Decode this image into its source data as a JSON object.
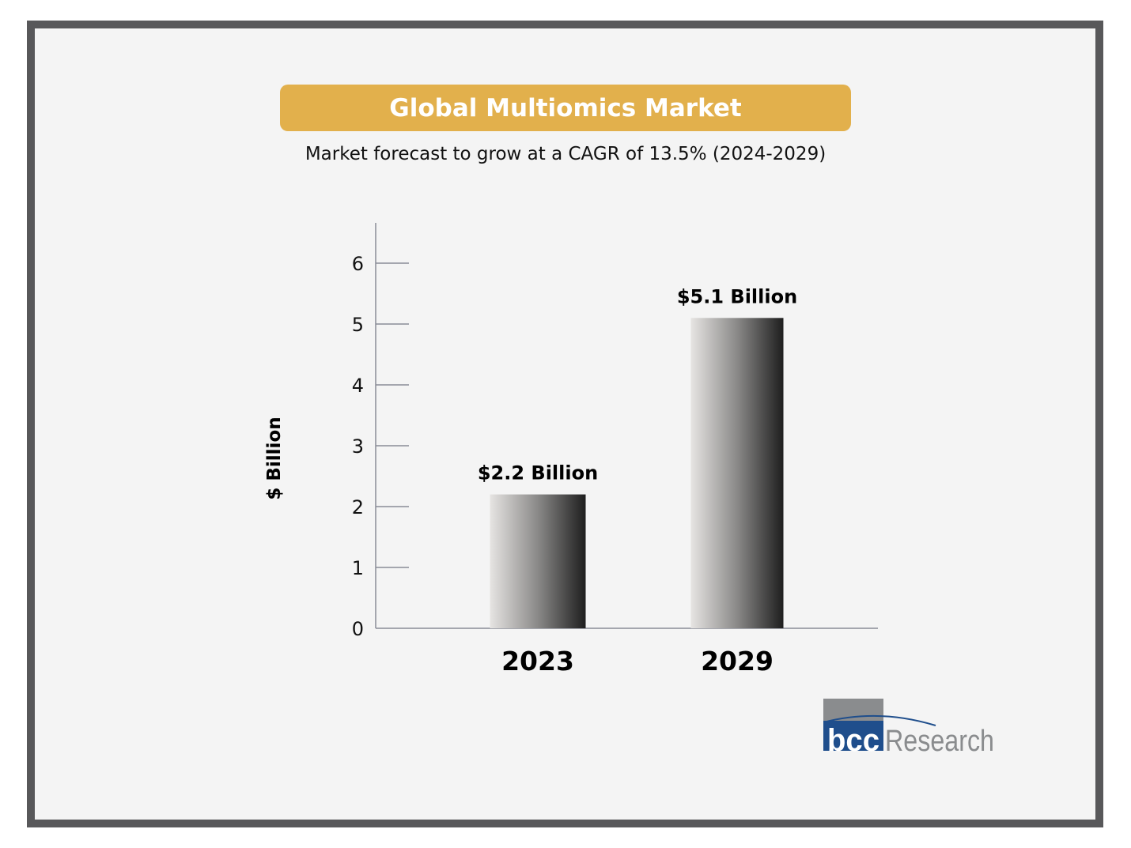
{
  "title": "Global Multiomics Market",
  "subtitle": "Market forecast to grow at a CAGR of 13.5% (2024-2029)",
  "colors": {
    "title_bg": "#e2b04c",
    "frame": "#58585a",
    "background": "#f4f4f4",
    "logo_blue": "#1f4e8c",
    "logo_gray": "#8a8c8e"
  },
  "logo": {
    "mark": "bcc",
    "text": "Research"
  },
  "chart_data": {
    "type": "bar",
    "categories": [
      "2023",
      "2029"
    ],
    "values": [
      2.2,
      5.1
    ],
    "data_labels": [
      "$2.2 Billion",
      "$5.1 Billion"
    ],
    "title": "Global Multiomics Market",
    "subtitle": "Market forecast to grow at a CAGR of 13.5% (2024-2029)",
    "xlabel": "",
    "ylabel": "$ Billion",
    "ylim": [
      0,
      6.6
    ],
    "yticks": [
      0,
      1,
      2,
      3,
      4,
      5,
      6
    ],
    "grid": false,
    "bar_fill": "horizontal gradient light gray to black"
  }
}
